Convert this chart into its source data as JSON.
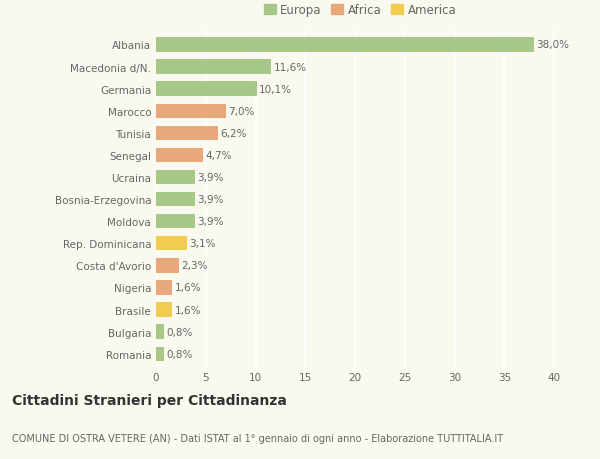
{
  "categories": [
    "Romania",
    "Bulgaria",
    "Brasile",
    "Nigeria",
    "Costa d'Avorio",
    "Rep. Dominicana",
    "Moldova",
    "Bosnia-Erzegovina",
    "Ucraina",
    "Senegal",
    "Tunisia",
    "Marocco",
    "Germania",
    "Macedonia d/N.",
    "Albania"
  ],
  "values": [
    0.8,
    0.8,
    1.6,
    1.6,
    2.3,
    3.1,
    3.9,
    3.9,
    3.9,
    4.7,
    6.2,
    7.0,
    10.1,
    11.6,
    38.0
  ],
  "labels": [
    "0,8%",
    "0,8%",
    "1,6%",
    "1,6%",
    "2,3%",
    "3,1%",
    "3,9%",
    "3,9%",
    "3,9%",
    "4,7%",
    "6,2%",
    "7,0%",
    "10,1%",
    "11,6%",
    "38,0%"
  ],
  "continents": [
    "Europa",
    "Europa",
    "America",
    "Africa",
    "Africa",
    "America",
    "Europa",
    "Europa",
    "Europa",
    "Africa",
    "Africa",
    "Africa",
    "Europa",
    "Europa",
    "Europa"
  ],
  "colors": {
    "Europa": "#a8c88a",
    "Africa": "#e8a87c",
    "America": "#f0cc50"
  },
  "legend_items": [
    "Europa",
    "Africa",
    "America"
  ],
  "legend_colors": [
    "#a8c88a",
    "#e8a87c",
    "#f0cc50"
  ],
  "title": "Cittadini Stranieri per Cittadinanza",
  "subtitle": "COMUNE DI OSTRA VETERE (AN) - Dati ISTAT al 1° gennaio di ogni anno - Elaborazione TUTTITALIA.IT",
  "xlim": [
    0,
    41
  ],
  "xticks": [
    0,
    5,
    10,
    15,
    20,
    25,
    30,
    35,
    40
  ],
  "background_color": "#f9f9f0",
  "grid_color": "#ffffff",
  "bar_height": 0.65,
  "label_fontsize": 7.5,
  "tick_fontsize": 7.5,
  "legend_fontsize": 8.5,
  "title_fontsize": 10,
  "subtitle_fontsize": 7.0
}
